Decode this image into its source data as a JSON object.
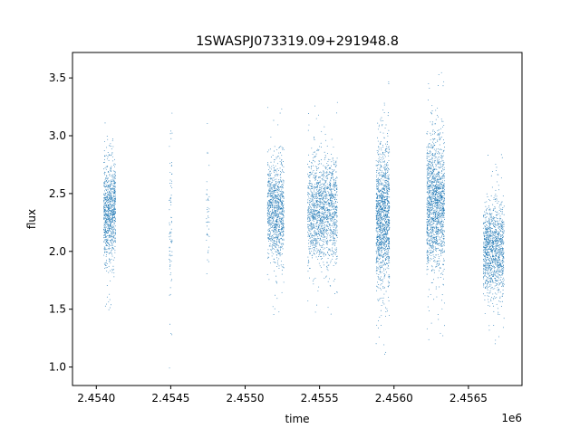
{
  "chart_data": {
    "type": "scatter",
    "title": "1SWASPJ073319.09+291948.8",
    "xlabel": "time",
    "ylabel": "flux",
    "x_offset_label": "1e6",
    "xlim": [
      2.45384,
      2.45686
    ],
    "ylim": [
      0.84,
      3.72
    ],
    "x_ticks": [
      2.454,
      2.4545,
      2.455,
      2.4555,
      2.456,
      2.4565
    ],
    "x_tick_labels": [
      "2.4540",
      "2.4545",
      "2.4550",
      "2.4555",
      "2.4560",
      "2.4565"
    ],
    "y_ticks": [
      1.0,
      1.5,
      2.0,
      2.5,
      3.0,
      3.5
    ],
    "y_tick_labels": [
      "1.0",
      "1.5",
      "2.0",
      "2.5",
      "3.0",
      "3.5"
    ],
    "grid": false,
    "marker_color": "#1f77b4",
    "series": [
      {
        "clusters": [
          {
            "x_range": [
              2.45405,
              2.45413
            ],
            "y_center": 2.35,
            "y_spread": 0.28,
            "count": 900
          },
          {
            "x_range": [
              2.45449,
              2.45451
            ],
            "y_center": 2.3,
            "y_spread": 0.6,
            "count": 80
          },
          {
            "x_range": [
              2.45474,
              2.45476
            ],
            "y_center": 2.3,
            "y_spread": 0.4,
            "count": 40
          },
          {
            "x_range": [
              2.45515,
              2.45526
            ],
            "y_center": 2.35,
            "y_spread": 0.3,
            "count": 1000
          },
          {
            "x_range": [
              2.45542,
              2.45562
            ],
            "y_center": 2.35,
            "y_spread": 0.3,
            "count": 1500
          },
          {
            "x_range": [
              2.45588,
              2.45597
            ],
            "y_center": 2.3,
            "y_spread": 0.38,
            "count": 1300
          },
          {
            "x_range": [
              2.45622,
              2.45634
            ],
            "y_center": 2.4,
            "y_spread": 0.38,
            "count": 1500
          },
          {
            "x_range": [
              2.4566,
              2.45674
            ],
            "y_center": 2.02,
            "y_spread": 0.26,
            "count": 1200
          }
        ]
      }
    ]
  }
}
